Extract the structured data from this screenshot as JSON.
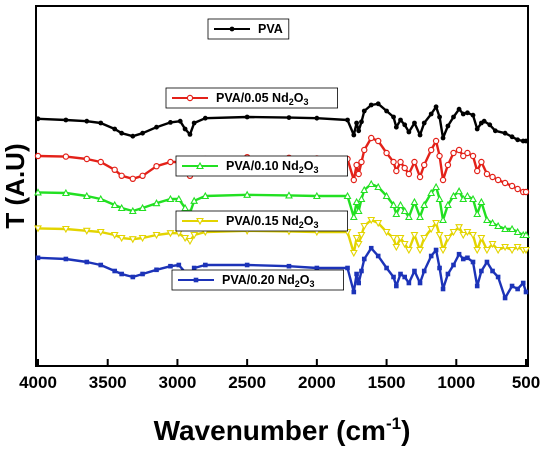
{
  "chart_data": {
    "type": "line",
    "title": "",
    "xlabel": "Wavenumber (cm",
    "xlabel_sup": "-1",
    "xlabel_close": ")",
    "ylabel": "T (A.U)",
    "xlim": [
      4000,
      500
    ],
    "x_reversed": true,
    "x_ticks": [
      "4000",
      "3500",
      "3000",
      "2500",
      "2000",
      "1500",
      "1000",
      "500"
    ],
    "y_ticks_shown": false,
    "grid": false,
    "legend_placement": "inline-above-each-curve",
    "series": [
      {
        "name": "PVA",
        "name_sub": "",
        "name_tail": "",
        "color": "#000000",
        "marker": "filled-circle",
        "offset": 4,
        "points": [
          [
            4000,
            0.02
          ],
          [
            3800,
            0.0
          ],
          [
            3650,
            -0.02
          ],
          [
            3550,
            -0.05
          ],
          [
            3450,
            -0.15
          ],
          [
            3400,
            -0.22
          ],
          [
            3320,
            -0.27
          ],
          [
            3250,
            -0.22
          ],
          [
            3150,
            -0.12
          ],
          [
            3050,
            -0.04
          ],
          [
            2980,
            -0.02
          ],
          [
            2945,
            -0.15
          ],
          [
            2910,
            -0.24
          ],
          [
            2880,
            -0.05
          ],
          [
            2800,
            0.03
          ],
          [
            2500,
            0.05
          ],
          [
            2200,
            0.04
          ],
          [
            2000,
            0.03
          ],
          [
            1780,
            0.0
          ],
          [
            1735,
            -0.25
          ],
          [
            1715,
            -0.05
          ],
          [
            1700,
            -0.18
          ],
          [
            1680,
            -0.03
          ],
          [
            1660,
            0.15
          ],
          [
            1610,
            0.25
          ],
          [
            1560,
            0.27
          ],
          [
            1500,
            0.15
          ],
          [
            1450,
            0.05
          ],
          [
            1430,
            -0.12
          ],
          [
            1400,
            0.0
          ],
          [
            1370,
            -0.08
          ],
          [
            1340,
            -0.2
          ],
          [
            1300,
            -0.05
          ],
          [
            1260,
            -0.25
          ],
          [
            1230,
            -0.05
          ],
          [
            1180,
            0.1
          ],
          [
            1145,
            0.22
          ],
          [
            1120,
            0.05
          ],
          [
            1095,
            -0.3
          ],
          [
            1060,
            -0.1
          ],
          [
            1020,
            0.05
          ],
          [
            980,
            0.18
          ],
          [
            950,
            0.1
          ],
          [
            920,
            0.12
          ],
          [
            880,
            0.08
          ],
          [
            850,
            -0.15
          ],
          [
            820,
            -0.05
          ],
          [
            800,
            -0.02
          ],
          [
            760,
            -0.08
          ],
          [
            720,
            -0.18
          ],
          [
            650,
            -0.22
          ],
          [
            600,
            -0.28
          ],
          [
            560,
            -0.33
          ],
          [
            520,
            -0.35
          ],
          [
            500,
            -0.35
          ]
        ]
      },
      {
        "name": "PVA/0.05 Nd",
        "name_sub": "2",
        "name_tail": "O3",
        "color": "#e32119",
        "marker": "open-circle",
        "offset": 3,
        "points": [
          [
            4000,
            0.05
          ],
          [
            3800,
            0.04
          ],
          [
            3650,
            0.0
          ],
          [
            3550,
            -0.05
          ],
          [
            3450,
            -0.18
          ],
          [
            3400,
            -0.28
          ],
          [
            3320,
            -0.33
          ],
          [
            3250,
            -0.28
          ],
          [
            3150,
            -0.12
          ],
          [
            3050,
            -0.05
          ],
          [
            2990,
            -0.05
          ],
          [
            2945,
            -0.2
          ],
          [
            2910,
            -0.28
          ],
          [
            2880,
            -0.08
          ],
          [
            2800,
            0.0
          ],
          [
            2500,
            0.03
          ],
          [
            2200,
            0.02
          ],
          [
            2000,
            0.01
          ],
          [
            1780,
            0.0
          ],
          [
            1735,
            -0.35
          ],
          [
            1715,
            -0.1
          ],
          [
            1700,
            -0.25
          ],
          [
            1680,
            -0.05
          ],
          [
            1660,
            0.15
          ],
          [
            1610,
            0.35
          ],
          [
            1560,
            0.3
          ],
          [
            1500,
            0.1
          ],
          [
            1450,
            -0.05
          ],
          [
            1430,
            -0.2
          ],
          [
            1400,
            -0.05
          ],
          [
            1370,
            -0.15
          ],
          [
            1340,
            -0.25
          ],
          [
            1300,
            -0.05
          ],
          [
            1260,
            -0.3
          ],
          [
            1230,
            -0.1
          ],
          [
            1180,
            0.15
          ],
          [
            1145,
            0.3
          ],
          [
            1120,
            0.05
          ],
          [
            1095,
            -0.35
          ],
          [
            1060,
            -0.1
          ],
          [
            1020,
            0.1
          ],
          [
            980,
            0.15
          ],
          [
            950,
            0.05
          ],
          [
            920,
            0.1
          ],
          [
            880,
            0.05
          ],
          [
            850,
            -0.2
          ],
          [
            820,
            -0.05
          ],
          [
            780,
            -0.25
          ],
          [
            740,
            -0.3
          ],
          [
            700,
            -0.35
          ],
          [
            650,
            -0.4
          ],
          [
            600,
            -0.45
          ],
          [
            560,
            -0.5
          ],
          [
            520,
            -0.55
          ],
          [
            500,
            -0.55
          ]
        ]
      },
      {
        "name": "PVA/0.10 Nd",
        "name_sub": "2",
        "name_tail": "O3",
        "color": "#22e022",
        "marker": "open-triangle",
        "offset": 2,
        "points": [
          [
            4000,
            0.06
          ],
          [
            3800,
            0.05
          ],
          [
            3650,
            0.0
          ],
          [
            3550,
            -0.05
          ],
          [
            3450,
            -0.15
          ],
          [
            3400,
            -0.2
          ],
          [
            3320,
            -0.25
          ],
          [
            3250,
            -0.2
          ],
          [
            3150,
            -0.12
          ],
          [
            3050,
            -0.05
          ],
          [
            2990,
            -0.05
          ],
          [
            2945,
            -0.2
          ],
          [
            2910,
            -0.28
          ],
          [
            2880,
            -0.08
          ],
          [
            2800,
            0.0
          ],
          [
            2500,
            0.02
          ],
          [
            2200,
            0.01
          ],
          [
            2000,
            0.0
          ],
          [
            1780,
            0.0
          ],
          [
            1735,
            -0.35
          ],
          [
            1715,
            -0.1
          ],
          [
            1700,
            -0.25
          ],
          [
            1680,
            -0.05
          ],
          [
            1660,
            0.1
          ],
          [
            1610,
            0.2
          ],
          [
            1560,
            0.15
          ],
          [
            1500,
            0.0
          ],
          [
            1450,
            -0.15
          ],
          [
            1430,
            -0.3
          ],
          [
            1400,
            -0.15
          ],
          [
            1370,
            -0.25
          ],
          [
            1340,
            -0.35
          ],
          [
            1300,
            -0.1
          ],
          [
            1260,
            -0.35
          ],
          [
            1230,
            -0.15
          ],
          [
            1180,
            0.05
          ],
          [
            1145,
            0.15
          ],
          [
            1120,
            -0.05
          ],
          [
            1095,
            -0.4
          ],
          [
            1060,
            -0.15
          ],
          [
            1020,
            0.0
          ],
          [
            980,
            0.08
          ],
          [
            950,
            -0.05
          ],
          [
            920,
            0.0
          ],
          [
            880,
            -0.05
          ],
          [
            850,
            -0.3
          ],
          [
            820,
            -0.1
          ],
          [
            780,
            -0.4
          ],
          [
            740,
            -0.45
          ],
          [
            700,
            -0.5
          ],
          [
            650,
            -0.55
          ],
          [
            600,
            -0.55
          ],
          [
            560,
            -0.6
          ],
          [
            520,
            -0.65
          ],
          [
            500,
            -0.65
          ]
        ]
      },
      {
        "name": "PVA/0.15 Nd",
        "name_sub": "2",
        "name_tail": "O3",
        "color": "#e3d400",
        "marker": "open-down-triangle",
        "offset": 1,
        "points": [
          [
            4000,
            0.06
          ],
          [
            3800,
            0.05
          ],
          [
            3650,
            0.02
          ],
          [
            3550,
            0.0
          ],
          [
            3450,
            -0.05
          ],
          [
            3400,
            -0.1
          ],
          [
            3320,
            -0.12
          ],
          [
            3250,
            -0.1
          ],
          [
            3150,
            -0.05
          ],
          [
            3050,
            -0.02
          ],
          [
            2990,
            -0.02
          ],
          [
            2945,
            -0.1
          ],
          [
            2910,
            -0.15
          ],
          [
            2880,
            -0.05
          ],
          [
            2800,
            0.0
          ],
          [
            2500,
            0.02
          ],
          [
            2200,
            0.01
          ],
          [
            2000,
            0.0
          ],
          [
            1780,
            0.0
          ],
          [
            1735,
            -0.35
          ],
          [
            1715,
            -0.1
          ],
          [
            1700,
            -0.2
          ],
          [
            1680,
            -0.05
          ],
          [
            1660,
            0.1
          ],
          [
            1610,
            0.2
          ],
          [
            1560,
            0.15
          ],
          [
            1500,
            0.0
          ],
          [
            1450,
            -0.1
          ],
          [
            1430,
            -0.25
          ],
          [
            1400,
            -0.1
          ],
          [
            1370,
            -0.2
          ],
          [
            1340,
            -0.3
          ],
          [
            1300,
            -0.05
          ],
          [
            1260,
            -0.3
          ],
          [
            1230,
            -0.1
          ],
          [
            1180,
            0.05
          ],
          [
            1145,
            0.15
          ],
          [
            1120,
            -0.05
          ],
          [
            1095,
            -0.3
          ],
          [
            1060,
            -0.1
          ],
          [
            1020,
            0.0
          ],
          [
            980,
            0.08
          ],
          [
            950,
            -0.05
          ],
          [
            920,
            0.0
          ],
          [
            880,
            -0.05
          ],
          [
            850,
            -0.3
          ],
          [
            820,
            -0.1
          ],
          [
            780,
            -0.3
          ],
          [
            740,
            -0.2
          ],
          [
            700,
            -0.3
          ],
          [
            650,
            -0.25
          ],
          [
            600,
            -0.3
          ],
          [
            560,
            -0.25
          ],
          [
            520,
            -0.3
          ],
          [
            500,
            -0.3
          ]
        ]
      },
      {
        "name": "PVA/0.20 Nd",
        "name_sub": "2",
        "name_tail": "O3",
        "color": "#1c33b8",
        "marker": "filled-square",
        "offset": 0,
        "points": [
          [
            4000,
            0.12
          ],
          [
            3800,
            0.1
          ],
          [
            3650,
            0.05
          ],
          [
            3550,
            0.0
          ],
          [
            3450,
            -0.1
          ],
          [
            3400,
            -0.15
          ],
          [
            3320,
            -0.2
          ],
          [
            3250,
            -0.15
          ],
          [
            3150,
            -0.08
          ],
          [
            3050,
            -0.02
          ],
          [
            2990,
            0.0
          ],
          [
            2945,
            -0.12
          ],
          [
            2910,
            -0.2
          ],
          [
            2880,
            -0.05
          ],
          [
            2800,
            0.0
          ],
          [
            2500,
            0.0
          ],
          [
            2200,
            -0.02
          ],
          [
            2000,
            -0.05
          ],
          [
            1780,
            -0.05
          ],
          [
            1735,
            -0.45
          ],
          [
            1715,
            -0.15
          ],
          [
            1700,
            -0.3
          ],
          [
            1680,
            -0.1
          ],
          [
            1660,
            0.1
          ],
          [
            1610,
            0.28
          ],
          [
            1560,
            0.15
          ],
          [
            1500,
            -0.05
          ],
          [
            1450,
            -0.2
          ],
          [
            1430,
            -0.35
          ],
          [
            1400,
            -0.15
          ],
          [
            1370,
            -0.2
          ],
          [
            1340,
            -0.3
          ],
          [
            1300,
            -0.1
          ],
          [
            1260,
            -0.3
          ],
          [
            1230,
            -0.1
          ],
          [
            1180,
            0.15
          ],
          [
            1145,
            0.25
          ],
          [
            1120,
            -0.05
          ],
          [
            1095,
            -0.4
          ],
          [
            1060,
            -0.15
          ],
          [
            1020,
            0.0
          ],
          [
            980,
            0.18
          ],
          [
            950,
            0.1
          ],
          [
            920,
            0.12
          ],
          [
            880,
            0.05
          ],
          [
            850,
            -0.35
          ],
          [
            820,
            -0.1
          ],
          [
            780,
            0.05
          ],
          [
            740,
            -0.1
          ],
          [
            700,
            -0.2
          ],
          [
            650,
            -0.55
          ],
          [
            600,
            -0.35
          ],
          [
            560,
            -0.4
          ],
          [
            520,
            -0.3
          ],
          [
            500,
            -0.45
          ]
        ]
      }
    ]
  }
}
